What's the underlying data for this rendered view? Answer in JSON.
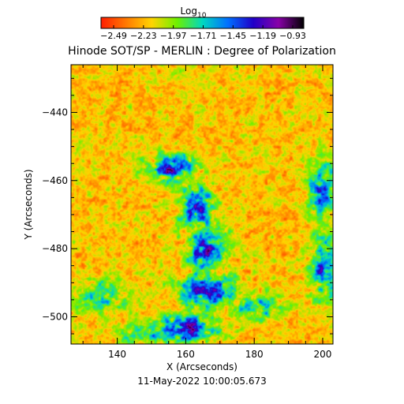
{
  "chart_data": {
    "type": "heatmap",
    "title": "Hinode SOT/SP - MERLIN : Degree of Polarization",
    "footer": "11-May-2022 10:00:05.673",
    "xlabel": "X (Arcseconds)",
    "ylabel": "Y (Arcseconds)",
    "xlim": [
      126.5,
      203.0
    ],
    "ylim": [
      -508.0,
      -426.0
    ],
    "x_ticks": [
      140,
      160,
      180,
      200
    ],
    "y_ticks": [
      -440,
      -460,
      -480,
      -500
    ],
    "colorbar": {
      "label_base": "Log",
      "label_sub": "10",
      "min": -2.62,
      "max": -0.8,
      "tick_labels": [
        "-2.49",
        "-2.23",
        "-1.97",
        "-1.71",
        "-1.45",
        "-1.19",
        "-0.93"
      ],
      "colors": [
        "#ff1e00",
        "#ff7a00",
        "#ffd400",
        "#6ef000",
        "#00d8c0",
        "#0070ff",
        "#2000c8",
        "#8800a8",
        "#000000"
      ]
    },
    "field": {
      "description_values": "log10 degree of polarization, mostly -2.3 to -1.9; enhanced (-1.6 to -1.1) along a lane from (150,-455) through (165,-480) to (162,-505) and in a patch near (198,-465) to (202,-495)",
      "background_level": -2.2,
      "lane_peak_level": -1.15
    }
  }
}
